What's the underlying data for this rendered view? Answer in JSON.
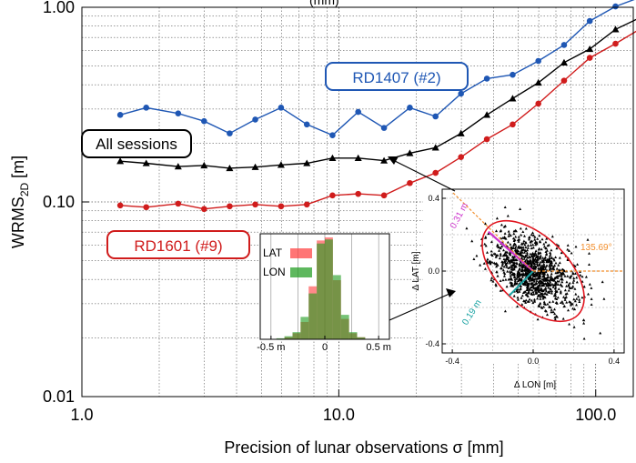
{
  "chart_data": [
    {
      "type": "line",
      "xscale": "log",
      "yscale": "log",
      "xlim": [
        1.0,
        140.0
      ],
      "ylim": [
        0.01,
        1.0
      ],
      "xlabel": "Precision of lunar observations σ [mm]",
      "ylabel_main": "WRMS",
      "ylabel_sub": "2D",
      "ylabel_unit": " [m]",
      "title": "",
      "grid": true,
      "x_ticks": [
        {
          "v": 1,
          "label": "1.0"
        },
        {
          "v": 10,
          "label": "10.0"
        },
        {
          "v": 100,
          "label": "100.0"
        }
      ],
      "y_ticks": [
        {
          "v": 0.01,
          "label": "0.01"
        },
        {
          "v": 0.1,
          "label": "0.10"
        },
        {
          "v": 1.0,
          "label": "1.00"
        }
      ],
      "x": [
        1.41,
        1.78,
        2.37,
        2.99,
        3.76,
        4.73,
        5.96,
        7.51,
        9.45,
        11.9,
        15.0,
        18.9,
        23.8,
        29.9,
        37.7,
        47.5,
        59.8,
        75.3,
        94.8,
        119.4,
        150.3
      ],
      "series": [
        {
          "name": "RD1407 (#2)",
          "color": "#1f57b4",
          "marker": "circle",
          "values": [
            0.28,
            0.305,
            0.285,
            0.26,
            0.225,
            0.265,
            0.305,
            0.25,
            0.22,
            0.29,
            0.24,
            0.305,
            0.275,
            0.36,
            0.43,
            0.45,
            0.53,
            0.64,
            0.85,
            1.01,
            1.13
          ]
        },
        {
          "name": "All sessions",
          "color": "#000000",
          "marker": "triangle",
          "values": [
            0.162,
            0.158,
            0.152,
            0.154,
            0.149,
            0.151,
            0.155,
            0.158,
            0.168,
            0.168,
            0.163,
            0.178,
            0.19,
            0.225,
            0.28,
            0.34,
            0.41,
            0.52,
            0.61,
            0.77,
            0.89
          ]
        },
        {
          "name": "RD1601 (#9)",
          "color": "#d01c1c",
          "marker": "circle",
          "values": [
            0.096,
            0.094,
            0.098,
            0.092,
            0.095,
            0.097,
            0.095,
            0.097,
            0.108,
            0.11,
            0.108,
            0.125,
            0.141,
            0.17,
            0.21,
            0.25,
            0.32,
            0.42,
            0.55,
            0.65,
            0.78
          ]
        }
      ],
      "labels": {
        "rd1407": "RD1407 (#2)",
        "all": "All sessions",
        "rd1601": "RD1601 (#9)"
      },
      "top_text_fragment": "(mm)"
    },
    {
      "type": "bar",
      "name": "histogram inset",
      "xlim": [
        -0.6,
        0.6
      ],
      "x_ticks": [
        {
          "v": -0.5,
          "label": "-0.5 m"
        },
        {
          "v": 0,
          "label": "0"
        },
        {
          "v": 0.5,
          "label": "0.5 m"
        }
      ],
      "bin_edges": [
        -0.6,
        -0.525,
        -0.45,
        -0.375,
        -0.3,
        -0.225,
        -0.15,
        -0.075,
        0.0,
        0.075,
        0.15,
        0.225,
        0.3,
        0.375,
        0.45,
        0.525,
        0.6
      ],
      "series": [
        {
          "name": "LAT",
          "color": "#ff3b3b",
          "values": [
            0.0,
            0.0,
            0.005,
            0.02,
            0.06,
            0.17,
            0.52,
            0.97,
            1.0,
            0.58,
            0.2,
            0.06,
            0.02,
            0.0,
            0.0,
            0.0
          ]
        },
        {
          "name": "LON",
          "color": "#1a9a1a",
          "values": [
            0.0,
            0.0,
            0.01,
            0.03,
            0.07,
            0.22,
            0.45,
            0.94,
            0.98,
            0.63,
            0.24,
            0.07,
            0.02,
            0.0,
            0.0,
            0.0
          ]
        }
      ],
      "legend": [
        "LAT",
        "LON"
      ]
    },
    {
      "type": "scatter",
      "name": "scatter inset",
      "xlim": [
        -0.45,
        0.45
      ],
      "ylim": [
        -0.45,
        0.45
      ],
      "xlabel": "Δ LON [m]",
      "ylabel": "Δ LAT [m]",
      "x_ticks": [
        {
          "v": -0.4,
          "label": "-0.4"
        },
        {
          "v": 0.0,
          "label": "0.0"
        },
        {
          "v": 0.4,
          "label": "0.4"
        }
      ],
      "y_ticks": [
        {
          "v": 0.4,
          "label": "0.4"
        },
        {
          "v": 0.0,
          "label": "0.0"
        },
        {
          "v": -0.4,
          "label": "-0.4"
        }
      ],
      "points_count": 1100,
      "ellipse": {
        "a": 0.31,
        "b": 0.19,
        "angle_deg": 135.69
      },
      "annotations": {
        "major": "0.31 m",
        "minor": "0.19 m",
        "angle": "135.69°"
      },
      "colors": {
        "points": "#000000",
        "ellipse": "#e0141e",
        "major": "#cc33cc",
        "minor": "#1aa3a3",
        "angle": "#f28e2b"
      }
    }
  ]
}
